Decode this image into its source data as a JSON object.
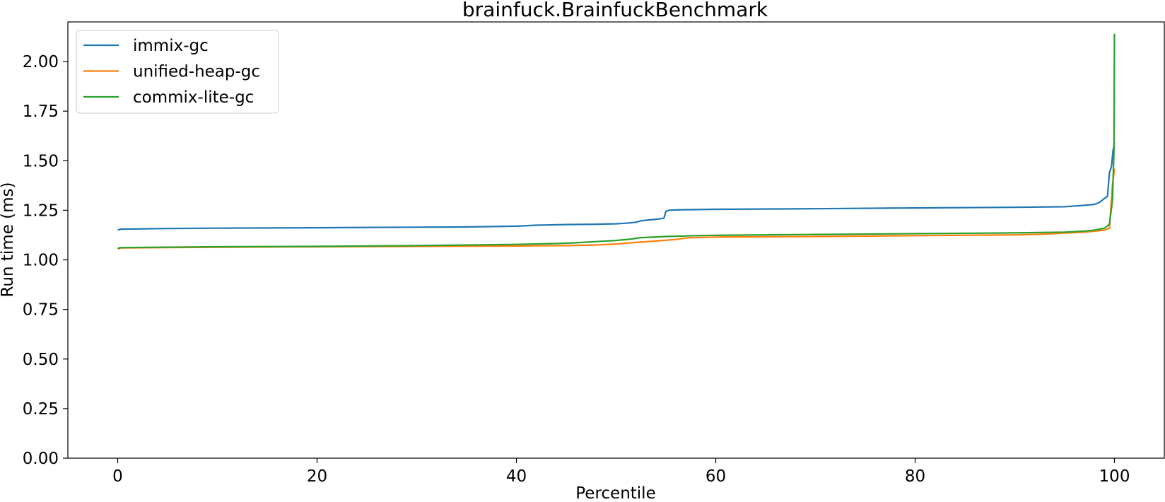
{
  "chart_data": {
    "type": "line",
    "title": "brainfuck.BrainfuckBenchmark",
    "xlabel": "Percentile",
    "ylabel": "Run time (ms)",
    "xlim": [
      -5,
      105
    ],
    "ylim": [
      0,
      2.2
    ],
    "xticks": [
      0,
      20,
      40,
      60,
      80,
      100
    ],
    "xtick_labels": [
      "0",
      "20",
      "40",
      "60",
      "80",
      "100"
    ],
    "yticks": [
      0,
      0.25,
      0.5,
      0.75,
      1.0,
      1.25,
      1.5,
      1.75,
      2.0
    ],
    "ytick_labels": [
      "0.00",
      "0.25",
      "0.50",
      "0.75",
      "1.00",
      "1.25",
      "1.50",
      "1.75",
      "2.00"
    ],
    "grid": false,
    "legend_position": "top-left",
    "series": [
      {
        "name": "immix-gc",
        "color": "#1f77b4",
        "x": [
          0,
          0.3,
          5,
          10,
          20,
          30,
          35,
          40,
          42,
          45,
          48,
          50,
          51,
          52,
          52.5,
          53,
          54,
          54.8,
          55,
          55.3,
          56,
          60,
          70,
          80,
          90,
          95,
          97,
          98,
          98.5,
          99,
          99.3,
          99.5,
          99.7,
          99.85,
          100
        ],
        "y": [
          1.15,
          1.155,
          1.158,
          1.16,
          1.162,
          1.165,
          1.166,
          1.17,
          1.175,
          1.178,
          1.18,
          1.182,
          1.185,
          1.19,
          1.197,
          1.2,
          1.205,
          1.21,
          1.245,
          1.25,
          1.252,
          1.255,
          1.258,
          1.262,
          1.265,
          1.268,
          1.275,
          1.28,
          1.29,
          1.31,
          1.32,
          1.44,
          1.47,
          1.55,
          1.59
        ]
      },
      {
        "name": "unified-heap-gc",
        "color": "#ff7f0e",
        "x": [
          0,
          0.3,
          5,
          10,
          20,
          30,
          40,
          45,
          48,
          50,
          52,
          54,
          56,
          57,
          57.5,
          60,
          70,
          80,
          90,
          93,
          95,
          97,
          98,
          99,
          99.5,
          99.8,
          100
        ],
        "y": [
          1.055,
          1.06,
          1.062,
          1.064,
          1.066,
          1.068,
          1.07,
          1.072,
          1.075,
          1.08,
          1.088,
          1.095,
          1.103,
          1.11,
          1.112,
          1.115,
          1.118,
          1.122,
          1.126,
          1.13,
          1.135,
          1.14,
          1.145,
          1.15,
          1.16,
          1.38,
          1.46
        ]
      },
      {
        "name": "commix-lite-gc",
        "color": "#2ca02c",
        "x": [
          0,
          0.3,
          5,
          10,
          20,
          30,
          40,
          44,
          46,
          48,
          50,
          51.5,
          52.5,
          55,
          58,
          60,
          70,
          80,
          90,
          95,
          97,
          98,
          99,
          99.5,
          99.8,
          99.95,
          100
        ],
        "y": [
          1.058,
          1.062,
          1.064,
          1.066,
          1.068,
          1.072,
          1.078,
          1.082,
          1.086,
          1.092,
          1.098,
          1.105,
          1.112,
          1.118,
          1.122,
          1.124,
          1.128,
          1.132,
          1.136,
          1.14,
          1.145,
          1.15,
          1.16,
          1.18,
          1.3,
          1.55,
          2.14
        ]
      }
    ]
  }
}
